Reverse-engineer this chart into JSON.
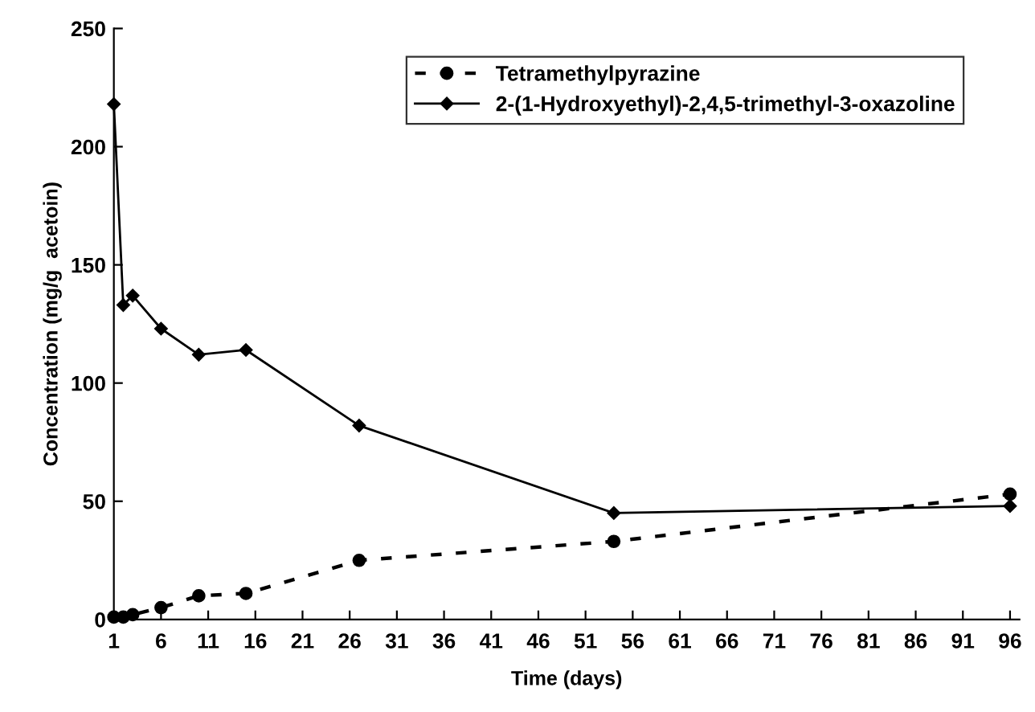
{
  "chart_data": {
    "type": "line",
    "xlabel": "Time (days)",
    "ylabel": "Concentration (mg/g  acetoin)",
    "xlim": [
      1,
      97
    ],
    "xticks": [
      1,
      6,
      11,
      16,
      21,
      26,
      31,
      36,
      41,
      46,
      51,
      56,
      61,
      66,
      71,
      76,
      81,
      86,
      91,
      96
    ],
    "ylim": [
      0,
      250
    ],
    "yticks": [
      0,
      50,
      100,
      150,
      200,
      250
    ],
    "grid": false,
    "legend": "top right",
    "series": [
      {
        "name": "Tetramethylpyrazine",
        "color": "#000000",
        "marker": "circle",
        "line_style": "dashed",
        "x": [
          1,
          2,
          3,
          6,
          10,
          15,
          27,
          54,
          96
        ],
        "values": [
          1,
          1,
          2,
          5,
          10,
          11,
          25,
          33,
          53
        ]
      },
      {
        "name": "2-(1-Hydroxyethyl)-2,4,5-trimethyl-3-oxazoline",
        "color": "#000000",
        "marker": "diamond",
        "line_style": "solid",
        "x": [
          1,
          2,
          3,
          6,
          10,
          15,
          27,
          54,
          96
        ],
        "values": [
          218,
          133,
          137,
          123,
          112,
          114,
          82,
          45,
          48
        ]
      }
    ]
  }
}
